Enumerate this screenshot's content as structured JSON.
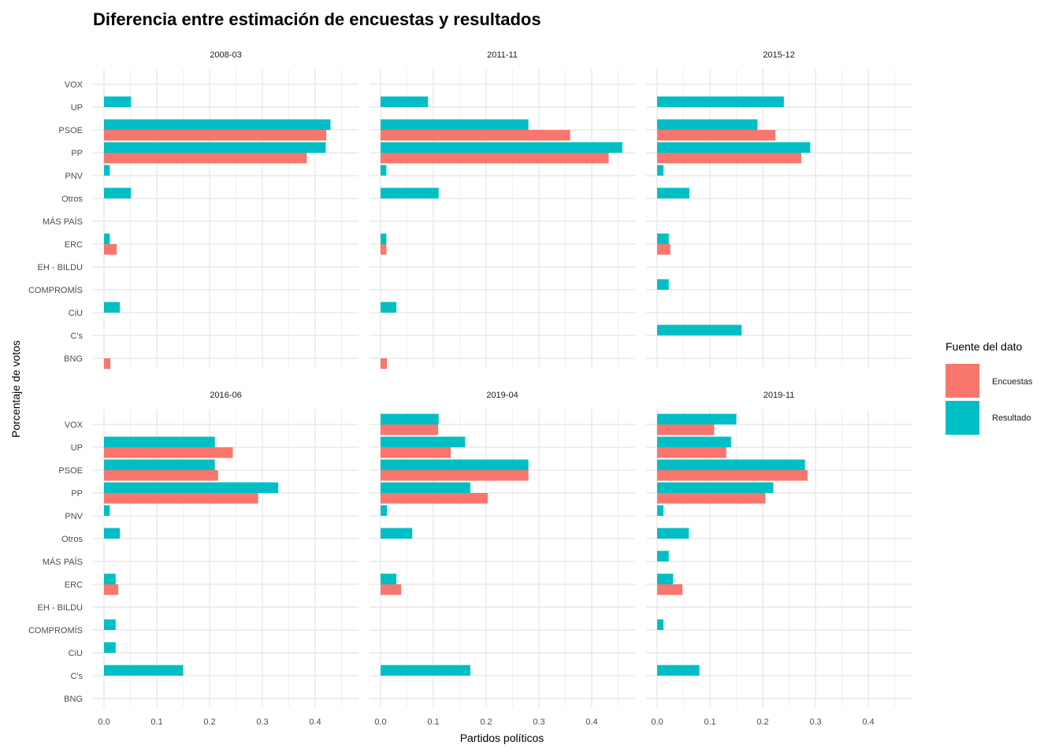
{
  "chart_data": {
    "type": "bar",
    "orientation": "horizontal",
    "title": "Diferencia entre estimación de encuestas y resultados",
    "xlabel": "Partidos políticos",
    "ylabel": "Porcentaje de votos",
    "legend_title": "Fuente del dato",
    "legend_placement": "right",
    "grid": true,
    "xlim": [
      0,
      0.465
    ],
    "x_ticks": [
      "0.0",
      "0.1",
      "0.2",
      "0.3",
      "0.4"
    ],
    "categories": [
      "VOX",
      "UP",
      "PSOE",
      "PP",
      "PNV",
      "Otros",
      "MÁS PAÍS",
      "ERC",
      "EH - BILDU",
      "COMPROMÍS",
      "CiU",
      "C's",
      "BNG"
    ],
    "series_names": [
      "Encuestas",
      "Resultado"
    ],
    "colors": {
      "Encuestas": "#F8766D",
      "Resultado": "#00BFC4"
    },
    "panels": [
      {
        "label": "2008-03",
        "Encuestas": [
          null,
          null,
          0.421,
          0.384,
          null,
          null,
          null,
          0.024,
          null,
          null,
          null,
          null,
          0.012
        ],
        "Resultado": [
          null,
          0.051,
          0.429,
          0.42,
          0.011,
          0.051,
          null,
          0.011,
          null,
          null,
          0.03,
          null,
          null
        ]
      },
      {
        "label": "2011-11",
        "Encuestas": [
          null,
          null,
          0.359,
          0.432,
          null,
          null,
          null,
          0.011,
          null,
          null,
          null,
          null,
          0.012
        ],
        "Resultado": [
          null,
          0.09,
          0.28,
          0.458,
          0.011,
          0.11,
          null,
          0.011,
          null,
          null,
          0.03,
          null,
          null
        ]
      },
      {
        "label": "2015-12",
        "Encuestas": [
          null,
          null,
          0.224,
          0.273,
          null,
          null,
          null,
          0.025,
          null,
          null,
          null,
          null,
          null
        ],
        "Resultado": [
          null,
          0.24,
          0.19,
          0.29,
          0.012,
          0.061,
          null,
          0.022,
          null,
          0.022,
          null,
          0.16,
          null
        ]
      },
      {
        "label": "2016-06",
        "Encuestas": [
          null,
          0.244,
          0.216,
          0.292,
          null,
          null,
          null,
          0.027,
          null,
          null,
          null,
          null,
          null
        ],
        "Resultado": [
          null,
          0.21,
          0.21,
          0.33,
          0.011,
          0.03,
          null,
          0.022,
          null,
          0.022,
          0.022,
          0.15,
          null
        ]
      },
      {
        "label": "2019-04",
        "Encuestas": [
          0.109,
          0.133,
          0.28,
          0.203,
          null,
          null,
          null,
          0.039,
          null,
          null,
          null,
          null,
          null
        ],
        "Resultado": [
          0.11,
          0.16,
          0.28,
          0.17,
          0.012,
          0.06,
          null,
          0.03,
          null,
          null,
          null,
          0.17,
          null
        ]
      },
      {
        "label": "2019-11",
        "Encuestas": [
          0.108,
          0.131,
          0.285,
          0.205,
          null,
          null,
          null,
          0.048,
          null,
          null,
          null,
          null,
          null
        ],
        "Resultado": [
          0.15,
          0.14,
          0.28,
          0.22,
          0.012,
          0.06,
          0.022,
          0.03,
          null,
          0.012,
          null,
          0.08,
          null
        ]
      }
    ]
  }
}
